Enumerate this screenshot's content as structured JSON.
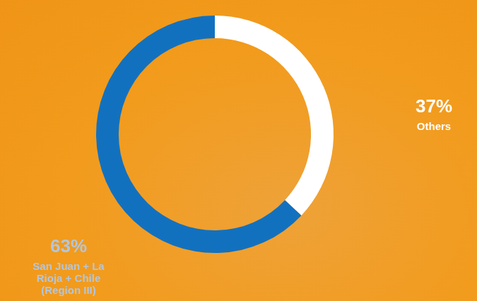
{
  "chart_data": {
    "type": "doughnut",
    "categories": [
      "Others",
      "San Juan + La Rioja + Chile (Region III)"
    ],
    "values": [
      37,
      63
    ],
    "value_labels": [
      "37%",
      "63%"
    ],
    "colors": [
      "#ffffff",
      "#1271bf"
    ],
    "data_labels": true
  }
}
